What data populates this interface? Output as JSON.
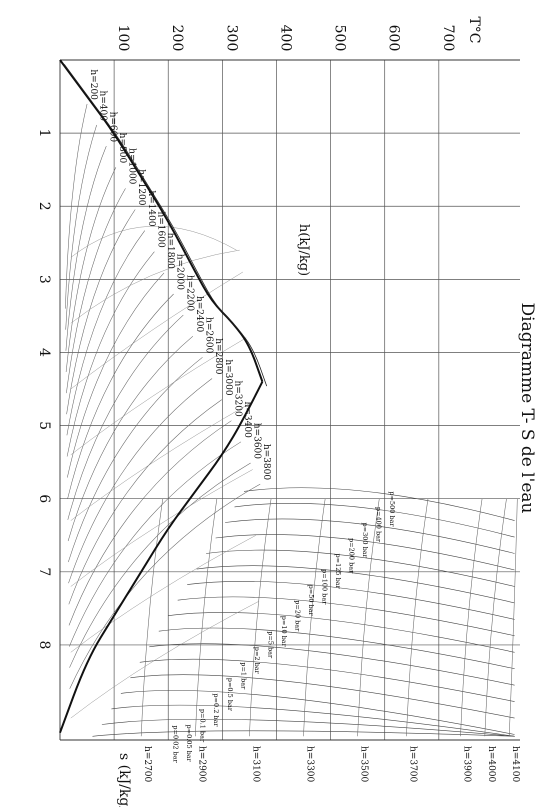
{
  "chart_data": {
    "type": "line",
    "title": "Diagramme T- S de l'eau",
    "xlabel": "s (kJ/kg/K)",
    "ylabel": "T°C",
    "curves_label": "h(kJ/kg)",
    "xlim": [
      0,
      9.3
    ],
    "ylim": [
      0,
      850
    ],
    "x_ticks": [
      "1",
      "2",
      "3",
      "4",
      "5",
      "6",
      "7",
      "8"
    ],
    "y_ticks": [
      "100",
      "200",
      "300",
      "400",
      "500",
      "600",
      "700"
    ],
    "grid": true,
    "saturation_dome": {
      "liquid": [
        [
          0,
          0
        ],
        [
          0.5,
          50
        ],
        [
          1.0,
          100
        ],
        [
          1.6,
          150
        ],
        [
          2.2,
          200
        ],
        [
          2.9,
          250
        ],
        [
          3.3,
          280
        ],
        [
          3.6,
          320
        ],
        [
          3.9,
          350
        ],
        [
          4.4,
          374
        ]
      ],
      "vapour": [
        [
          4.4,
          374
        ],
        [
          4.9,
          340
        ],
        [
          5.4,
          300
        ],
        [
          5.9,
          250
        ],
        [
          6.4,
          200
        ],
        [
          7.0,
          150
        ],
        [
          7.6,
          100
        ],
        [
          8.2,
          50
        ],
        [
          9.2,
          0
        ]
      ]
    },
    "enthalpy_labels": [
      "h=200",
      "h=400",
      "h=600",
      "h=800",
      "h=1000",
      "h=1200",
      "h=1400",
      "h=1600",
      "h=1800",
      "h=2000",
      "h=2200",
      "h=2400",
      "h=2600",
      "h=2800",
      "h=3000",
      "h=3200",
      "h=3400",
      "h=3600",
      "h=3800"
    ],
    "enthalpy_labels_right": [
      "h=4100",
      "h=4000",
      "h=3900",
      "h=3700",
      "h=3500",
      "h=3300",
      "h=3100",
      "h=2900",
      "h=2700"
    ],
    "pressure_labels": [
      "p=500 bar",
      "p=400 bar",
      "p=300 bar",
      "p=200 bar",
      "p=125 bar",
      "p=100 bar",
      "p=50 bar",
      "p=20 bar",
      "p=10 bar",
      "p=5 bar",
      "p=2 bar",
      "p=1 bar",
      "p=0.5 bar",
      "p=0.2 bar",
      "p=0.1 bar",
      "p=0.05 bar",
      "p=0.02 bar"
    ]
  }
}
